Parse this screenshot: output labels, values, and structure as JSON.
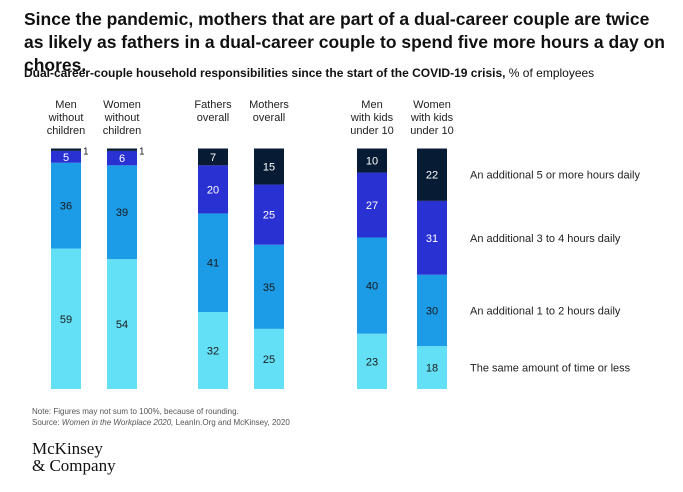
{
  "headline": "Since the pandemic, mothers that are part of a dual-career couple are twice as likely as fathers in a dual-career couple to spend five more hours a day on chores.",
  "subtitle_bold": "Dual-career-couple household responsibilities since the start of the COVID-19 crisis,",
  "subtitle_unit": " % of employees",
  "note": "Note: Figures may not sum to 100%, because of rounding.",
  "source_prefix": "Source: ",
  "source_italic": "Women in the Workplace 2020,",
  "source_rest": " LeanIn.Org and McKinsey, 2020",
  "logo_line1": "McKinsey",
  "logo_line2": "& Company",
  "colors": {
    "same_or_less": "#64e0f6",
    "one_to_two": "#1c9be6",
    "three_to_four": "#2a31d3",
    "five_plus": "#071c34"
  },
  "chart_data": {
    "type": "bar",
    "stacked": true,
    "unit": "% of employees",
    "categories": [
      [
        "Men",
        "without",
        "children"
      ],
      [
        "Women",
        "without",
        "children"
      ],
      [
        "Fathers",
        "overall"
      ],
      [
        "Mothers",
        "overall"
      ],
      [
        "Men",
        "with kids",
        "under 10"
      ],
      [
        "Women",
        "with kids",
        "under 10"
      ]
    ],
    "series": [
      {
        "name": "The same amount of time or less",
        "color": "#64e0f6",
        "values": [
          59,
          54,
          32,
          25,
          23,
          18
        ]
      },
      {
        "name": "An additional 1 to 2 hours daily",
        "color": "#1c9be6",
        "values": [
          36,
          39,
          41,
          35,
          40,
          30
        ]
      },
      {
        "name": "An additional 3 to 4 hours daily",
        "color": "#2a31d3",
        "values": [
          5,
          6,
          20,
          25,
          27,
          31
        ]
      },
      {
        "name": "An additional 5 or more hours daily",
        "color": "#071c34",
        "values": [
          1,
          1,
          7,
          15,
          10,
          22
        ]
      }
    ],
    "ylim": [
      0,
      100
    ]
  }
}
